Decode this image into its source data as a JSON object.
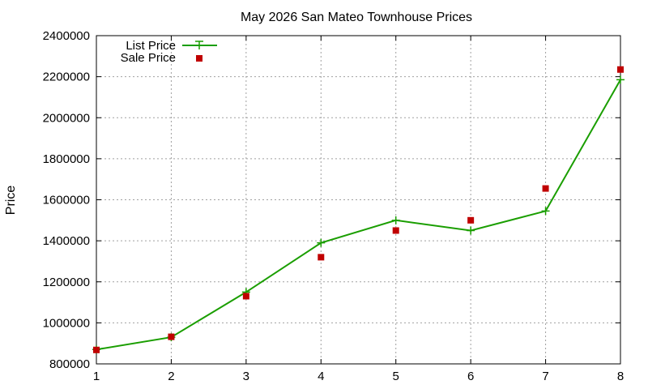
{
  "chart_data": {
    "type": "line",
    "title": "May 2026 San Mateo Townhouse Prices",
    "xlabel": "",
    "ylabel": "Price",
    "x": [
      1,
      2,
      3,
      4,
      5,
      6,
      7,
      8
    ],
    "xlim": [
      1,
      8
    ],
    "ylim": [
      800000,
      2400000
    ],
    "xticks": [
      1,
      2,
      3,
      4,
      5,
      6,
      7,
      8
    ],
    "yticks": [
      800000,
      1000000,
      1200000,
      1400000,
      1600000,
      1800000,
      2000000,
      2200000,
      2400000
    ],
    "grid": true,
    "legend_position": "top-left",
    "series": [
      {
        "name": "List Price",
        "style": "line-with-plus-markers",
        "color": "#1a9e00",
        "values": [
          870000,
          930000,
          1150000,
          1390000,
          1500000,
          1450000,
          1545000,
          2185000
        ]
      },
      {
        "name": "Sale Price",
        "style": "square-points",
        "color": "#c00000",
        "values": [
          868000,
          932000,
          1130000,
          1320000,
          1450000,
          1500000,
          1655000,
          2235000
        ]
      }
    ]
  }
}
